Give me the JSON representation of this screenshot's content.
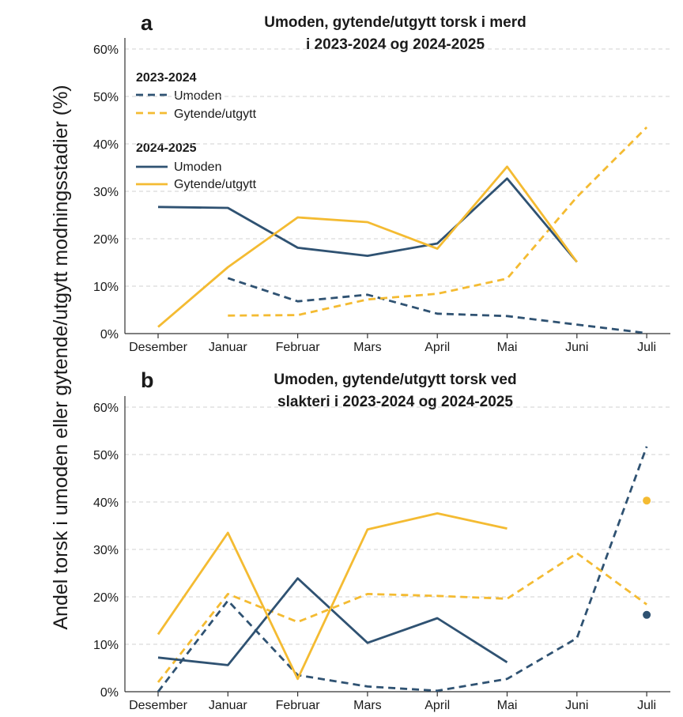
{
  "ylabel": "Andel torsk i umoden eller gytende/utgytt modningsstadier (%)",
  "colors": {
    "umoden": "#2f5272",
    "gytende": "#f4bb32",
    "grid": "#d0d0d0",
    "axis": "#333333"
  },
  "legend": {
    "group1": {
      "title": "2023-2024",
      "umoden": "Umoden",
      "gytende": "Gytende/utgytt",
      "style": "dashed"
    },
    "group2": {
      "title": "2024-2025",
      "umoden": "Umoden",
      "gytende": "Gytende/utgytt",
      "style": "solid"
    }
  },
  "chart_data": [
    {
      "panel": "a",
      "type": "line",
      "title_line1": "Umoden, gytende/utgytt torsk i merd",
      "title_line2": "i 2023-2024 og 2024-2025",
      "categories": [
        "Desember",
        "Januar",
        "Februar",
        "Mars",
        "April",
        "Mai",
        "Juni",
        "Juli"
      ],
      "yticks": [
        "0%",
        "10%",
        "20%",
        "30%",
        "40%",
        "50%",
        "60%"
      ],
      "ylim": [
        0,
        60
      ],
      "grid": "horizontal dashed",
      "legend_position": "top-left",
      "series": [
        {
          "name": "Umoden",
          "season": "2023-2024",
          "style": "dashed",
          "color": "umoden",
          "values": [
            null,
            11.7,
            6.8,
            8.2,
            4.2,
            3.7,
            1.9,
            0.1
          ]
        },
        {
          "name": "Gytende/utgytt",
          "season": "2023-2024",
          "style": "dashed",
          "color": "gytende",
          "values": [
            null,
            3.8,
            3.9,
            7.2,
            8.4,
            11.6,
            28.8,
            43.5
          ]
        },
        {
          "name": "Umoden",
          "season": "2024-2025",
          "style": "solid",
          "color": "umoden",
          "values": [
            26.7,
            26.5,
            18.1,
            16.4,
            19.0,
            32.7,
            15.1,
            null
          ]
        },
        {
          "name": "Gytende/utgytt",
          "season": "2024-2025",
          "style": "solid",
          "color": "gytende",
          "values": [
            1.4,
            14.0,
            24.5,
            23.5,
            17.9,
            35.2,
            15.1,
            null
          ]
        }
      ]
    },
    {
      "panel": "b",
      "type": "line",
      "title_line1": "Umoden, gytende/utgytt torsk ved",
      "title_line2": "slakteri i 2023-2024 og 2024-2025",
      "categories": [
        "Desember",
        "Januar",
        "Februar",
        "Mars",
        "April",
        "Mai",
        "Juni",
        "Juli"
      ],
      "yticks": [
        "0%",
        "10%",
        "20%",
        "30%",
        "40%",
        "50%",
        "60%"
      ],
      "ylim": [
        0,
        60
      ],
      "grid": "horizontal dashed",
      "series": [
        {
          "name": "Umoden",
          "season": "2023-2024",
          "style": "dashed",
          "color": "umoden",
          "values": [
            0.0,
            19.2,
            3.5,
            1.1,
            0.2,
            2.7,
            11.3,
            51.7
          ]
        },
        {
          "name": "Gytende/utgytt",
          "season": "2023-2024",
          "style": "dashed",
          "color": "gytende",
          "values": [
            2.0,
            20.6,
            14.7,
            20.6,
            20.2,
            19.6,
            29.2,
            18.4
          ]
        },
        {
          "name": "Umoden",
          "season": "2024-2025",
          "style": "solid",
          "color": "umoden",
          "values": [
            7.2,
            5.6,
            23.9,
            10.3,
            15.5,
            6.2,
            null,
            16.2
          ]
        },
        {
          "name": "Gytende/utgytt",
          "season": "2024-2025",
          "style": "solid",
          "color": "gytende",
          "values": [
            12.1,
            33.5,
            2.7,
            34.2,
            37.6,
            34.4,
            null,
            40.3
          ]
        }
      ]
    }
  ]
}
